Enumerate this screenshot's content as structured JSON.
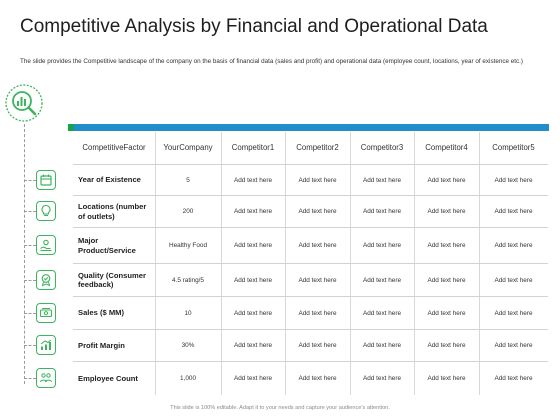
{
  "title": "Competitive Analysis by Financial and Operational Data",
  "subtitle": "The slide provides the Competitive landscape of the company on the basis of financial data (sales and profit) and operational data (employee count, locations, year of existence etc.)",
  "columns": [
    "Competitive Factor",
    "Your Company",
    "Competitor 1",
    "Competitor 2",
    "Competitor 3",
    "Competitor 4",
    "Competitor 5"
  ],
  "column_lines": [
    [
      "Competitive",
      "Factor"
    ],
    [
      "Your",
      "Company"
    ],
    [
      "Competitor",
      "1"
    ],
    [
      "Competitor",
      "2"
    ],
    [
      "Competitor",
      "3"
    ],
    [
      "Competitor",
      "4"
    ],
    [
      "Competitor",
      "5"
    ]
  ],
  "rows": [
    {
      "icon": "calendar-icon",
      "factor": "Year of Existence",
      "company": "5",
      "competitors": [
        "Add text here",
        "Add text here",
        "Add text here",
        "Add text here",
        "Add text here"
      ]
    },
    {
      "icon": "lightbulb-icon",
      "factor": "Locations (number of outlets)",
      "company": "200",
      "competitors": [
        "Add text here",
        "Add text here",
        "Add text here",
        "Add text here",
        "Add text here"
      ]
    },
    {
      "icon": "hand-service-icon",
      "factor": "Major Product/Service",
      "company": "Healthy Food",
      "competitors": [
        "Add text here",
        "Add text here",
        "Add text here",
        "Add text here",
        "Add text here"
      ]
    },
    {
      "icon": "quality-badge-icon",
      "factor": "Quality (Consumer feedback)",
      "company": "4.5 rating/5",
      "competitors": [
        "Add text here",
        "Add text here",
        "Add text here",
        "Add text here",
        "Add text here"
      ]
    },
    {
      "icon": "money-icon",
      "factor": "Sales ($ MM)",
      "company": "10",
      "competitors": [
        "Add text here",
        "Add text here",
        "Add text here",
        "Add text here",
        "Add text here"
      ]
    },
    {
      "icon": "growth-chart-icon",
      "factor": "Profit Margin",
      "company": "30%",
      "competitors": [
        "Add text here",
        "Add text here",
        "Add text here",
        "Add text here",
        "Add text here"
      ]
    },
    {
      "icon": "employees-icon",
      "factor": "Employee Count",
      "company": "1,000",
      "competitors": [
        "Add text here",
        "Add text here",
        "Add text here",
        "Add text here",
        "Add text here"
      ]
    }
  ],
  "footer": "This slide is 100% editable. Adapt it to your needs and capture your audience's attention.",
  "colors": {
    "accent_blue": "#1f8ec9",
    "accent_green": "#3cb55e"
  }
}
